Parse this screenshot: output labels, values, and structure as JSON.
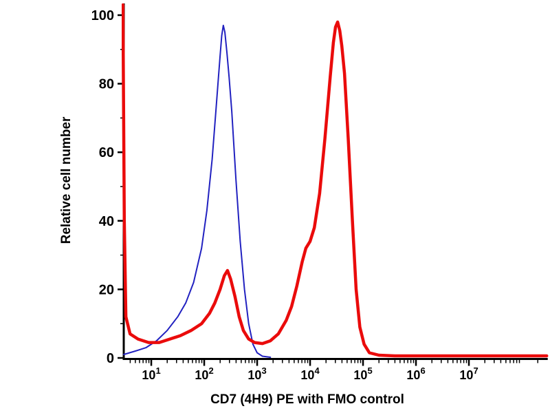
{
  "chart_data": {
    "type": "line",
    "subtype": "flow-cytometry-histogram-overlay",
    "title": "",
    "xlabel": "CD7 (4H9) PE with FMO control",
    "ylabel": "Relative cell number",
    "x_scale": "log10",
    "x_domain_log10": [
      0.48,
      8.47
    ],
    "ylim": [
      0,
      100
    ],
    "y_ticks": [
      0,
      20,
      40,
      60,
      80,
      100
    ],
    "y_minor_ticks": [
      10,
      30,
      50,
      70,
      90
    ],
    "x_tick_base": "10",
    "x_tick_exponents": [
      1,
      2,
      3,
      4,
      5,
      6,
      7
    ],
    "grid": false,
    "legend": "none",
    "axis_color": "#000000",
    "series": [
      {
        "name": "FMO control",
        "color": "#2121c0",
        "stroke_width": 2,
        "points": [
          [
            0.48,
            1
          ],
          [
            0.7,
            2
          ],
          [
            0.9,
            3
          ],
          [
            1.1,
            5
          ],
          [
            1.3,
            8
          ],
          [
            1.5,
            12
          ],
          [
            1.65,
            16
          ],
          [
            1.8,
            22
          ],
          [
            1.95,
            32
          ],
          [
            2.05,
            43
          ],
          [
            2.15,
            58
          ],
          [
            2.22,
            72
          ],
          [
            2.27,
            82
          ],
          [
            2.3,
            88
          ],
          [
            2.33,
            94
          ],
          [
            2.36,
            97
          ],
          [
            2.39,
            95
          ],
          [
            2.43,
            89
          ],
          [
            2.47,
            82
          ],
          [
            2.52,
            72
          ],
          [
            2.6,
            52
          ],
          [
            2.68,
            34
          ],
          [
            2.76,
            20
          ],
          [
            2.84,
            10
          ],
          [
            2.92,
            4
          ],
          [
            3.0,
            1.5
          ],
          [
            3.1,
            0.5
          ],
          [
            3.25,
            0.2
          ]
        ]
      },
      {
        "name": "CD7 (4H9) PE",
        "color": "#ea0b0b",
        "stroke_width": 4.5,
        "points": [
          [
            0.465,
            103
          ],
          [
            0.49,
            40
          ],
          [
            0.52,
            12
          ],
          [
            0.6,
            7
          ],
          [
            0.75,
            5.5
          ],
          [
            0.95,
            4.5
          ],
          [
            1.15,
            4.5
          ],
          [
            1.35,
            5.5
          ],
          [
            1.55,
            6.5
          ],
          [
            1.75,
            8
          ],
          [
            1.95,
            10
          ],
          [
            2.1,
            13
          ],
          [
            2.2,
            16
          ],
          [
            2.3,
            20
          ],
          [
            2.38,
            24
          ],
          [
            2.44,
            25.5
          ],
          [
            2.5,
            23
          ],
          [
            2.58,
            18
          ],
          [
            2.66,
            12
          ],
          [
            2.74,
            8
          ],
          [
            2.84,
            5.5
          ],
          [
            2.95,
            4.5
          ],
          [
            3.1,
            4.2
          ],
          [
            3.25,
            5
          ],
          [
            3.4,
            7
          ],
          [
            3.55,
            11
          ],
          [
            3.65,
            15
          ],
          [
            3.75,
            21
          ],
          [
            3.85,
            28
          ],
          [
            3.92,
            32
          ],
          [
            4.0,
            34
          ],
          [
            4.08,
            38
          ],
          [
            4.18,
            48
          ],
          [
            4.28,
            64
          ],
          [
            4.38,
            82
          ],
          [
            4.44,
            92
          ],
          [
            4.48,
            96.5
          ],
          [
            4.52,
            98
          ],
          [
            4.56,
            95.5
          ],
          [
            4.6,
            91
          ],
          [
            4.65,
            83
          ],
          [
            4.72,
            64
          ],
          [
            4.8,
            40
          ],
          [
            4.87,
            20
          ],
          [
            4.94,
            9
          ],
          [
            5.02,
            4
          ],
          [
            5.12,
            1.5
          ],
          [
            5.3,
            0.8
          ],
          [
            5.6,
            0.6
          ],
          [
            6.0,
            0.6
          ],
          [
            6.5,
            0.6
          ],
          [
            7.0,
            0.6
          ],
          [
            7.6,
            0.6
          ],
          [
            8.3,
            0.6
          ],
          [
            8.47,
            0.6
          ]
        ]
      }
    ]
  }
}
